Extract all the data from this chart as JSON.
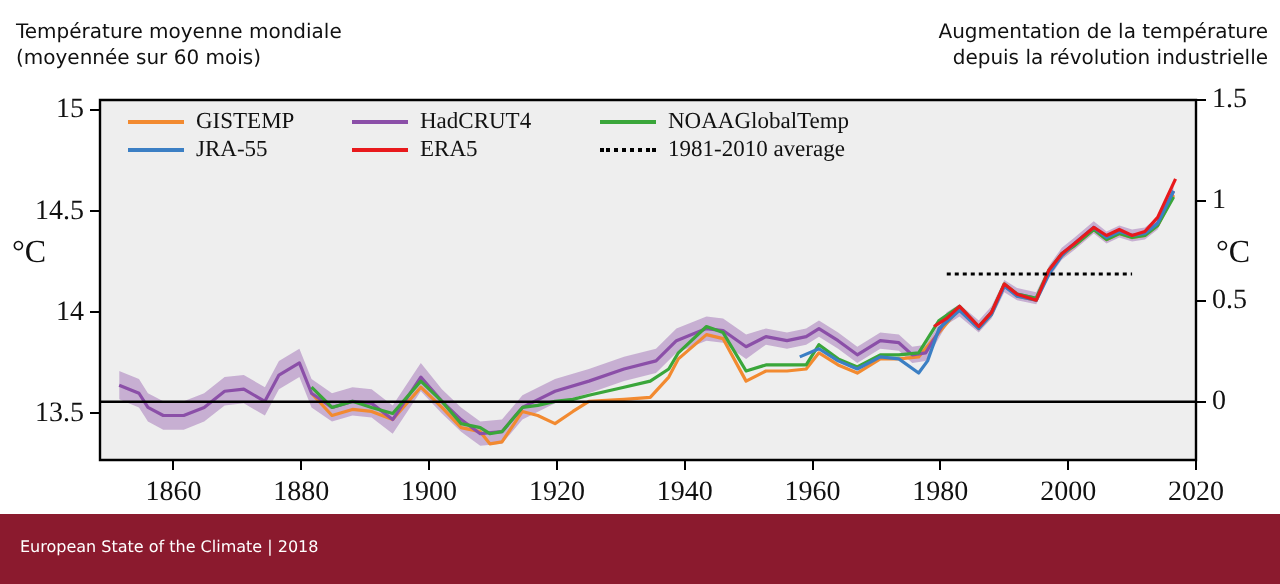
{
  "chart_data": {
    "type": "line",
    "title": "Température moyenne mondiale (moyennée sur 60 mois)",
    "subtitle": "Augmentation de la température depuis la révolution industrielle",
    "ylabel": "°C",
    "y2label": "°C",
    "annotations": [
      "European State of the Climate | 2018"
    ],
    "xlim": [
      1848.5,
      2020
    ],
    "xticks": [
      1860,
      1880,
      1900,
      1920,
      1940,
      1960,
      1980,
      2000,
      2020
    ],
    "ylim": [
      13.27,
      15.05
    ],
    "yticks": [
      13.5,
      14,
      14.5,
      15
    ],
    "y2lim": [
      -0.29,
      1.5
    ],
    "y2ticks": [
      0,
      0.5,
      1,
      1.5
    ],
    "grid": false,
    "legend": "top left",
    "ref_lines": [
      {
        "axis": "y2",
        "value": 0,
        "color": "#000000"
      }
    ],
    "series": [
      {
        "name": "GISTEMP",
        "color": "#f28a30",
        "x": [
          1881.6,
          1884.8,
          1888,
          1891,
          1894.3,
          1898.7,
          1902,
          1905,
          1908,
          1909.5,
          1911.4,
          1914.6,
          1917,
          1919.7,
          1922.5,
          1925,
          1930.5,
          1934.6,
          1937.5,
          1939,
          1943.4,
          1946,
          1949.6,
          1952.7,
          1956,
          1959,
          1961,
          1964,
          1967,
          1970.6,
          1973.5,
          1976.6,
          1979.8,
          1983,
          1986,
          1988,
          1990,
          1992,
          1995,
          1997,
          1999,
          2001,
          2004,
          2006,
          2008,
          2010,
          2012,
          2014,
          2016.5
        ],
        "values": [
          13.6,
          13.49,
          13.52,
          13.51,
          13.47,
          13.63,
          13.53,
          13.43,
          13.41,
          13.35,
          13.36,
          13.51,
          13.49,
          13.45,
          13.51,
          13.56,
          13.57,
          13.58,
          13.68,
          13.77,
          13.89,
          13.87,
          13.66,
          13.71,
          13.71,
          13.72,
          13.8,
          13.74,
          13.7,
          13.77,
          13.77,
          13.78,
          13.9,
          14.02,
          13.92,
          13.99,
          14.14,
          14.08,
          14.06,
          14.2,
          14.28,
          14.33,
          14.41,
          14.36,
          14.39,
          14.37,
          14.38,
          14.43,
          14.58
        ]
      },
      {
        "name": "HadCRUT4",
        "color": "#8b4fa8",
        "x": [
          1851.5,
          1854.6,
          1856,
          1858.4,
          1861.6,
          1864.8,
          1868,
          1871,
          1874.3,
          1876.5,
          1879.7,
          1881.6,
          1884.8,
          1888,
          1891,
          1894.3,
          1898.7,
          1902,
          1905,
          1908,
          1911.4,
          1914.6,
          1919.7,
          1925,
          1930.5,
          1935.5,
          1938.7,
          1943.4,
          1946,
          1949.6,
          1952.7,
          1956,
          1959,
          1961,
          1964,
          1967,
          1970.6,
          1973.5,
          1975.6,
          1977.7,
          1981,
          1983,
          1986,
          1988,
          1990,
          1992,
          1995,
          1997,
          1999,
          2001,
          2004,
          2006,
          2008,
          2010,
          2012,
          2014,
          2016.5
        ],
        "values": [
          13.64,
          13.6,
          13.53,
          13.49,
          13.49,
          13.53,
          13.61,
          13.62,
          13.56,
          13.69,
          13.75,
          13.6,
          13.53,
          13.56,
          13.55,
          13.47,
          13.68,
          13.56,
          13.47,
          13.4,
          13.41,
          13.53,
          13.61,
          13.66,
          13.72,
          13.76,
          13.86,
          13.92,
          13.91,
          13.83,
          13.88,
          13.86,
          13.88,
          13.92,
          13.86,
          13.79,
          13.86,
          13.85,
          13.79,
          13.8,
          13.97,
          14.01,
          13.93,
          14.0,
          14.13,
          14.09,
          14.07,
          14.2,
          14.29,
          14.34,
          14.42,
          14.37,
          14.4,
          14.38,
          14.39,
          14.44,
          14.6
        ],
        "lower": [
          13.57,
          13.53,
          13.46,
          13.42,
          13.42,
          13.46,
          13.54,
          13.55,
          13.49,
          13.62,
          13.68,
          13.53,
          13.46,
          13.49,
          13.48,
          13.4,
          13.61,
          13.5,
          13.41,
          13.34,
          13.35,
          13.47,
          13.55,
          13.6,
          13.66,
          13.7,
          13.8,
          13.86,
          13.85,
          13.77,
          13.84,
          13.82,
          13.84,
          13.88,
          13.82,
          13.75,
          13.82,
          13.81,
          13.75,
          13.76,
          13.94,
          13.98,
          13.9,
          13.97,
          14.1,
          14.06,
          14.04,
          14.17,
          14.26,
          14.31,
          14.39,
          14.34,
          14.37,
          14.35,
          14.36,
          14.41,
          14.57
        ],
        "upper": [
          13.71,
          13.67,
          13.6,
          13.56,
          13.56,
          13.6,
          13.68,
          13.69,
          13.63,
          13.76,
          13.82,
          13.67,
          13.6,
          13.63,
          13.62,
          13.54,
          13.75,
          13.62,
          13.53,
          13.46,
          13.47,
          13.59,
          13.67,
          13.72,
          13.78,
          13.82,
          13.92,
          13.98,
          13.97,
          13.89,
          13.92,
          13.9,
          13.92,
          13.96,
          13.9,
          13.83,
          13.9,
          13.89,
          13.83,
          13.84,
          14.0,
          14.04,
          13.96,
          14.03,
          14.16,
          14.12,
          14.1,
          14.23,
          14.32,
          14.37,
          14.45,
          14.4,
          14.43,
          14.41,
          14.42,
          14.47,
          14.63
        ]
      },
      {
        "name": "NOAAGlobalTemp",
        "color": "#3aa63a",
        "x": [
          1881.6,
          1884.8,
          1888,
          1891,
          1894.3,
          1898.7,
          1902,
          1905,
          1908,
          1909.5,
          1911.4,
          1914.6,
          1917,
          1919.7,
          1922.5,
          1925,
          1930.5,
          1934.6,
          1937.5,
          1939,
          1943.4,
          1946,
          1949.6,
          1952.7,
          1956,
          1959,
          1961,
          1964,
          1967,
          1970.6,
          1973.5,
          1976.6,
          1979.8,
          1983,
          1986,
          1988,
          1990,
          1992,
          1995,
          1997,
          1999,
          2001,
          2004,
          2006,
          2008,
          2010,
          2012,
          2014,
          2016.5
        ],
        "values": [
          13.63,
          13.53,
          13.56,
          13.53,
          13.5,
          13.66,
          13.56,
          13.45,
          13.43,
          13.4,
          13.41,
          13.53,
          13.54,
          13.56,
          13.57,
          13.59,
          13.63,
          13.66,
          13.72,
          13.8,
          13.93,
          13.9,
          13.71,
          13.74,
          13.74,
          13.74,
          13.84,
          13.77,
          13.73,
          13.79,
          13.79,
          13.8,
          13.96,
          14.03,
          13.93,
          14.0,
          14.14,
          14.09,
          14.07,
          14.21,
          14.29,
          14.33,
          14.41,
          14.36,
          14.39,
          14.37,
          14.38,
          14.43,
          14.57
        ]
      },
      {
        "name": "JRA-55",
        "color": "#3b7fc4",
        "x": [
          1958,
          1961,
          1964,
          1967,
          1970.6,
          1973.5,
          1976.6,
          1978,
          1979.8,
          1983,
          1986,
          1988,
          1990,
          1992,
          1995,
          1997,
          1999,
          2001,
          2004,
          2006,
          2008,
          2010,
          2012,
          2014,
          2016.5
        ],
        "values": [
          13.78,
          13.82,
          13.76,
          13.72,
          13.78,
          13.77,
          13.7,
          13.76,
          13.92,
          14.01,
          13.92,
          13.99,
          14.13,
          14.08,
          14.06,
          14.19,
          14.28,
          14.34,
          14.42,
          14.37,
          14.4,
          14.38,
          14.39,
          14.44,
          14.6
        ]
      },
      {
        "name": "ERA5",
        "color": "#e8191c",
        "x": [
          1979,
          1981,
          1983,
          1986,
          1988,
          1990,
          1992,
          1995,
          1997,
          1999,
          2001,
          2004,
          2006,
          2008,
          2010,
          2012,
          2014,
          2016.8
        ],
        "values": [
          13.93,
          13.97,
          14.03,
          13.93,
          14.0,
          14.14,
          14.09,
          14.06,
          14.21,
          14.29,
          14.34,
          14.42,
          14.38,
          14.41,
          14.38,
          14.4,
          14.47,
          14.66
        ]
      },
      {
        "name": "1981-2010 average",
        "color": "#000000",
        "line_style": "dotted",
        "x": [
          1981,
          2010
        ],
        "values": [
          14.19,
          14.19
        ]
      }
    ]
  }
}
